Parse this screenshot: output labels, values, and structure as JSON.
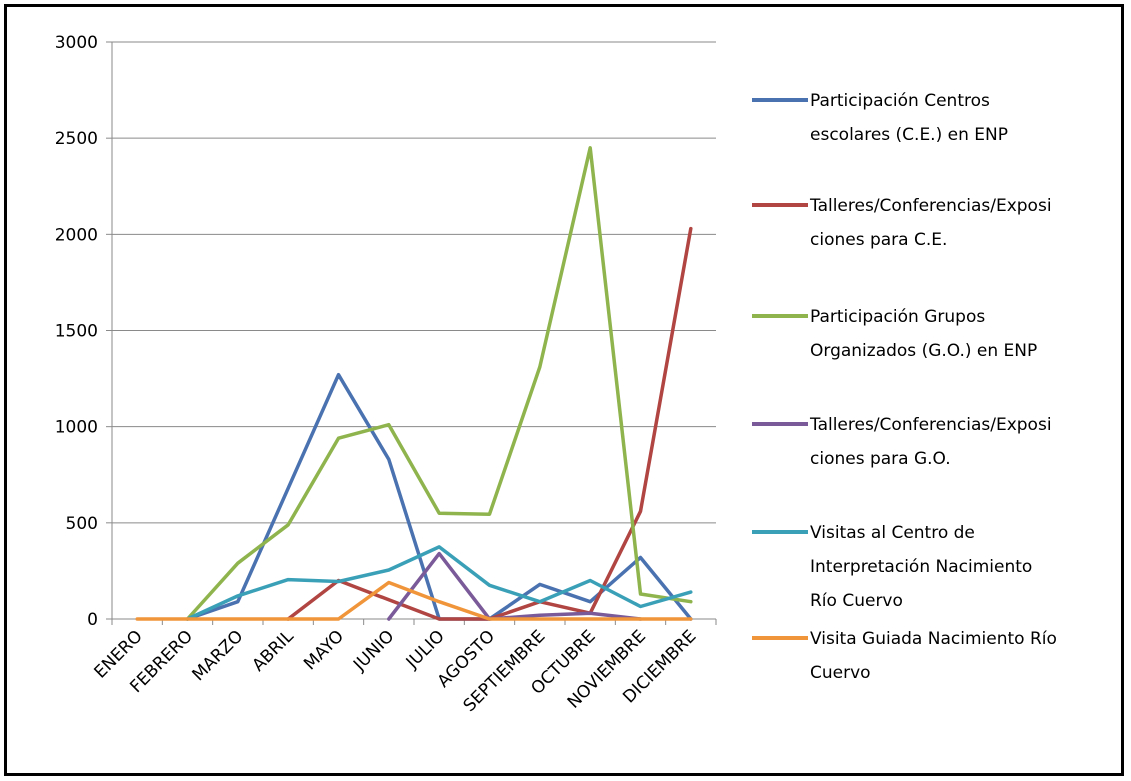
{
  "chart_data": {
    "type": "line",
    "title": "",
    "xlabel": "",
    "ylabel": "",
    "ylim": [
      0,
      3000
    ],
    "yticks": [
      "0",
      "500",
      "1000",
      "1500",
      "2000",
      "2500",
      "3000"
    ],
    "categories": [
      "ENERO",
      "FEBRERO",
      "MARZO",
      "ABRIL",
      "MAYO",
      "JUNIO",
      "JULIO",
      "AGOSTO",
      "SEPTIEMBRE",
      "OCTUBRE",
      "NOVIEMBRE",
      "DICIEMBRE"
    ],
    "grid": true,
    "legend_position": "right",
    "series": [
      {
        "name_lines": [
          "Participación Centros",
          "escolares (C.E.) en ENP"
        ],
        "color": "#4a72b0",
        "values": [
          null,
          0,
          90,
          680,
          1270,
          830,
          0,
          0,
          180,
          90,
          320,
          0
        ]
      },
      {
        "name_lines": [
          "Talleres/Conferencias/Exposi",
          "ciones para C.E."
        ],
        "color": "#b04542",
        "values": [
          null,
          null,
          null,
          0,
          200,
          100,
          0,
          0,
          90,
          30,
          560,
          2030
        ]
      },
      {
        "name_lines": [
          "Participación Grupos",
          "Organizados (G.O.) en ENP"
        ],
        "color": "#8fb44e",
        "values": [
          null,
          0,
          290,
          490,
          940,
          1010,
          550,
          545,
          1310,
          2450,
          130,
          90
        ]
      },
      {
        "name_lines": [
          "Talleres/Conferencias/Exposi",
          "ciones para G.O."
        ],
        "color": "#7a5a98",
        "values": [
          null,
          null,
          null,
          null,
          null,
          0,
          340,
          0,
          20,
          30,
          0,
          null
        ]
      },
      {
        "name_lines": [
          "Visitas al Centro de",
          "Interpretación Nacimiento",
          "Río Cuervo"
        ],
        "color": "#3aa0b8",
        "values": [
          null,
          0,
          120,
          205,
          195,
          255,
          375,
          175,
          90,
          200,
          65,
          140
        ]
      },
      {
        "name_lines": [
          "Visita Guiada Nacimiento Río",
          "Cuervo"
        ],
        "color": "#f0953a",
        "values": [
          0,
          0,
          0,
          0,
          0,
          190,
          90,
          0,
          0,
          0,
          0,
          0
        ]
      }
    ]
  }
}
